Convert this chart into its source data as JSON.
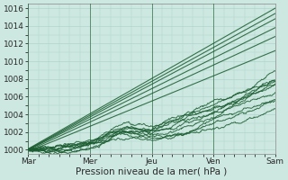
{
  "background_color": "#cce8e0",
  "plot_bg_color": "#cce8e0",
  "grid_color": "#b0d4cc",
  "line_color_dark": "#1a5c30",
  "line_color_mid": "#1a5c30",
  "xlabel": "Pression niveau de la mer( hPa )",
  "ylim": [
    999.5,
    1016.5
  ],
  "yticks": [
    1000,
    1002,
    1004,
    1006,
    1008,
    1010,
    1012,
    1014,
    1016
  ],
  "day_labels": [
    "Mar",
    "Mer",
    "Jeu",
    "Ven",
    "Sam"
  ],
  "day_positions": [
    0,
    0.25,
    0.5,
    0.75,
    1.0
  ],
  "tick_fontsize": 6.5,
  "axis_fontsize": 7.5,
  "straight_lines": [
    [
      1000.0,
      1016.0
    ],
    [
      1000.0,
      1015.5
    ],
    [
      1000.0,
      1015.0
    ],
    [
      1000.0,
      1014.0
    ],
    [
      1000.0,
      1013.0
    ],
    [
      1000.0,
      1011.5
    ]
  ]
}
